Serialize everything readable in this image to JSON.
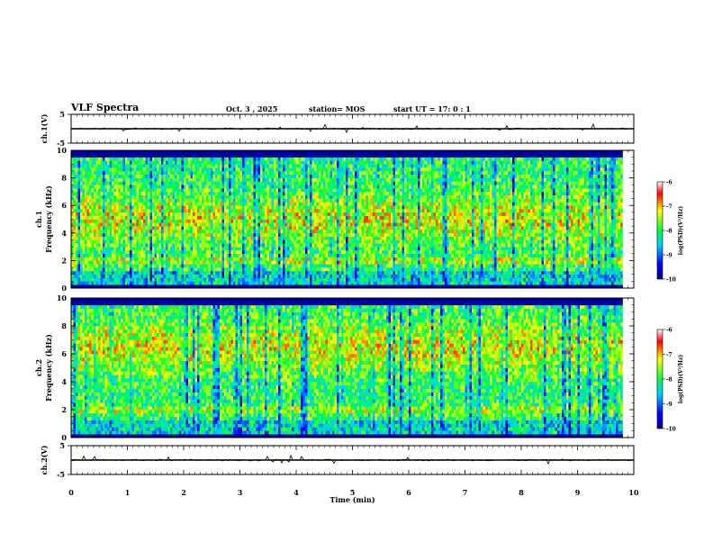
{
  "header": {
    "title": "VLF Spectra",
    "date": "Oct. 3 , 2025",
    "station": "station= MOS",
    "start": "start UT = 17: 0 : 1"
  },
  "colors": {
    "background": "#ffffff",
    "axis": "#000000",
    "spectrogram_low": "#00007f",
    "spectrogram_high": "#ff0000"
  },
  "chart_data": [
    {
      "type": "line",
      "name": "ch1-waveform",
      "ylabel": "ch.1(V)",
      "yticks": [
        "5",
        "-5"
      ],
      "ylim": [
        -5,
        5
      ],
      "xlim": [
        0,
        10
      ],
      "series": [
        {
          "name": "ch.1",
          "approx_level": 0
        }
      ]
    },
    {
      "type": "heatmap",
      "name": "ch1-spectrogram",
      "ylabel_line1": "ch.1",
      "ylabel_line2": "Frequency (kHz)",
      "ylim": [
        0,
        10
      ],
      "yticks": [
        "0",
        "2",
        "4",
        "6",
        "8",
        "10"
      ],
      "xlim": [
        0,
        9.8
      ],
      "colorbar": {
        "label": "log(PSD)(V²/Hz)",
        "ticks": [
          "-6",
          "-7",
          "-8",
          "-9",
          "-10"
        ],
        "range": [
          -10,
          -6
        ]
      },
      "band_peak_khz": [
        2,
        5
      ]
    },
    {
      "type": "heatmap",
      "name": "ch2-spectrogram",
      "ylabel_line1": "ch.2",
      "ylabel_line2": "Frequency (kHz)",
      "ylim": [
        0,
        10
      ],
      "yticks": [
        "0",
        "2",
        "4",
        "6",
        "8",
        "10"
      ],
      "xlim": [
        0,
        9.8
      ],
      "colorbar": {
        "label": "log(PSD)(V²/Hz)",
        "ticks": [
          "-6",
          "-7",
          "-8",
          "-9",
          "-10"
        ],
        "range": [
          -10,
          -6
        ]
      },
      "band_peak_khz": [
        2,
        6.5
      ]
    },
    {
      "type": "line",
      "name": "ch2-waveform",
      "ylabel": "ch.2(V)",
      "yticks": [
        "5",
        "-5"
      ],
      "ylim": [
        -5,
        5
      ],
      "xlim": [
        0,
        10
      ],
      "series": [
        {
          "name": "ch.2",
          "approx_level": 0
        }
      ]
    }
  ],
  "xaxis": {
    "label": "Time (min)",
    "ticks": [
      "0",
      "1",
      "2",
      "3",
      "4",
      "5",
      "6",
      "7",
      "8",
      "9",
      "10"
    ],
    "range": [
      0,
      10
    ]
  }
}
